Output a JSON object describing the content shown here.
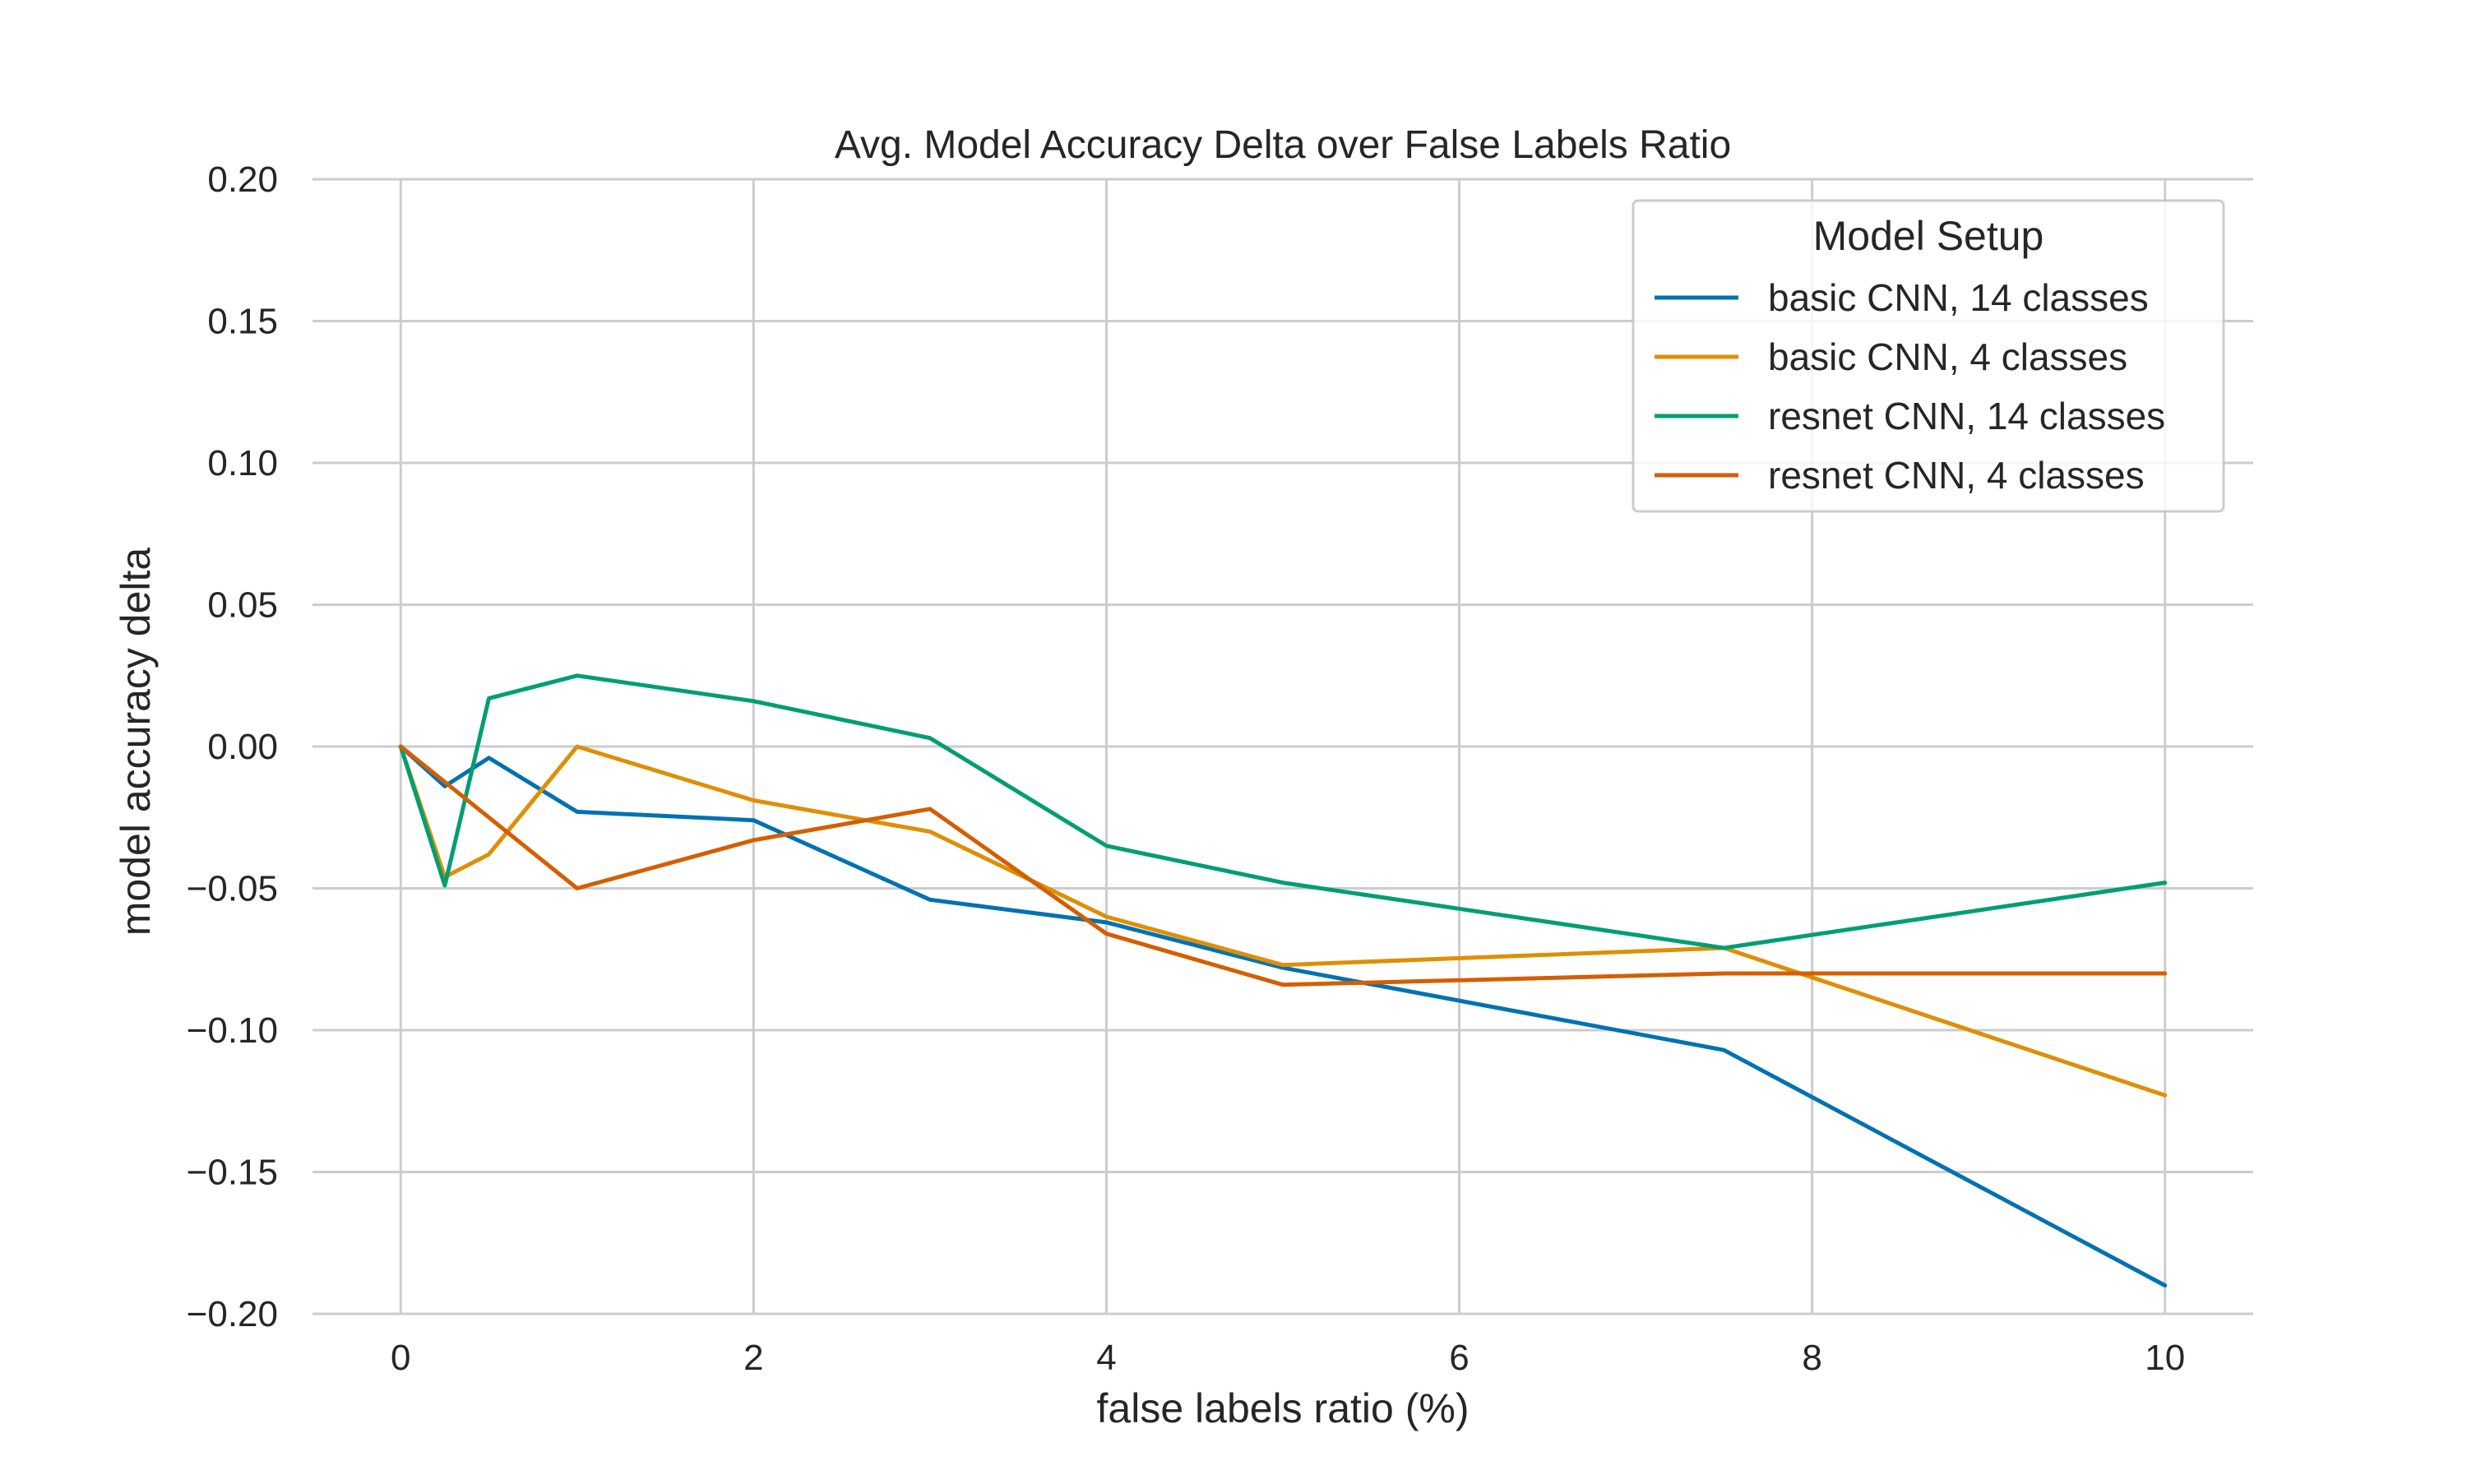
{
  "chart_data": {
    "type": "line",
    "title": "Avg. Model Accuracy Delta over False Labels Ratio",
    "xlabel": "false labels ratio (%)",
    "ylabel": "model accuracy delta",
    "xlim": [
      -0.5,
      10.5
    ],
    "ylim": [
      -0.2,
      0.2
    ],
    "x_ticks": [
      0,
      2,
      4,
      6,
      8,
      10
    ],
    "x_tick_labels": [
      "0",
      "2",
      "4",
      "6",
      "8",
      "10"
    ],
    "y_ticks": [
      0.2,
      0.15,
      0.1,
      0.05,
      0.0,
      -0.05,
      -0.1,
      -0.15,
      -0.2
    ],
    "y_tick_labels": [
      "0.20",
      "0.15",
      "0.10",
      "0.05",
      "0.00",
      "−0.05",
      "−0.10",
      "−0.15",
      "−0.20"
    ],
    "grid": true,
    "legend": {
      "title": "Model Setup",
      "placement": "top-right"
    },
    "series": [
      {
        "name": "basic CNN, 14 classes",
        "color": "#0072b2",
        "x": [
          0,
          0.25,
          0.5,
          1,
          2,
          3,
          4,
          5,
          7.5,
          10
        ],
        "y": [
          0.0,
          -0.014,
          -0.004,
          -0.023,
          -0.026,
          -0.054,
          -0.062,
          -0.078,
          -0.107,
          -0.19
        ]
      },
      {
        "name": "basic CNN, 4 classes",
        "color": "#de8f05",
        "x": [
          0,
          0.25,
          0.5,
          1,
          2,
          3,
          4,
          5,
          7.5,
          10
        ],
        "y": [
          0.0,
          -0.046,
          -0.038,
          0.0,
          -0.019,
          -0.03,
          -0.06,
          -0.077,
          -0.071,
          -0.123
        ]
      },
      {
        "name": "resnet CNN, 14 classes",
        "color": "#029e73",
        "x": [
          0,
          0.25,
          0.5,
          1,
          2,
          3,
          4,
          5,
          7.5,
          10
        ],
        "y": [
          0.0,
          -0.049,
          0.017,
          0.025,
          0.016,
          0.003,
          -0.035,
          -0.048,
          -0.071,
          -0.048
        ]
      },
      {
        "name": "resnet CNN, 4 classes",
        "color": "#d55e00",
        "x": [
          0,
          1,
          2,
          3,
          4,
          5,
          7.5,
          10
        ],
        "y": [
          0.0,
          -0.05,
          -0.033,
          -0.022,
          -0.066,
          -0.084,
          -0.08,
          -0.08
        ]
      }
    ]
  }
}
